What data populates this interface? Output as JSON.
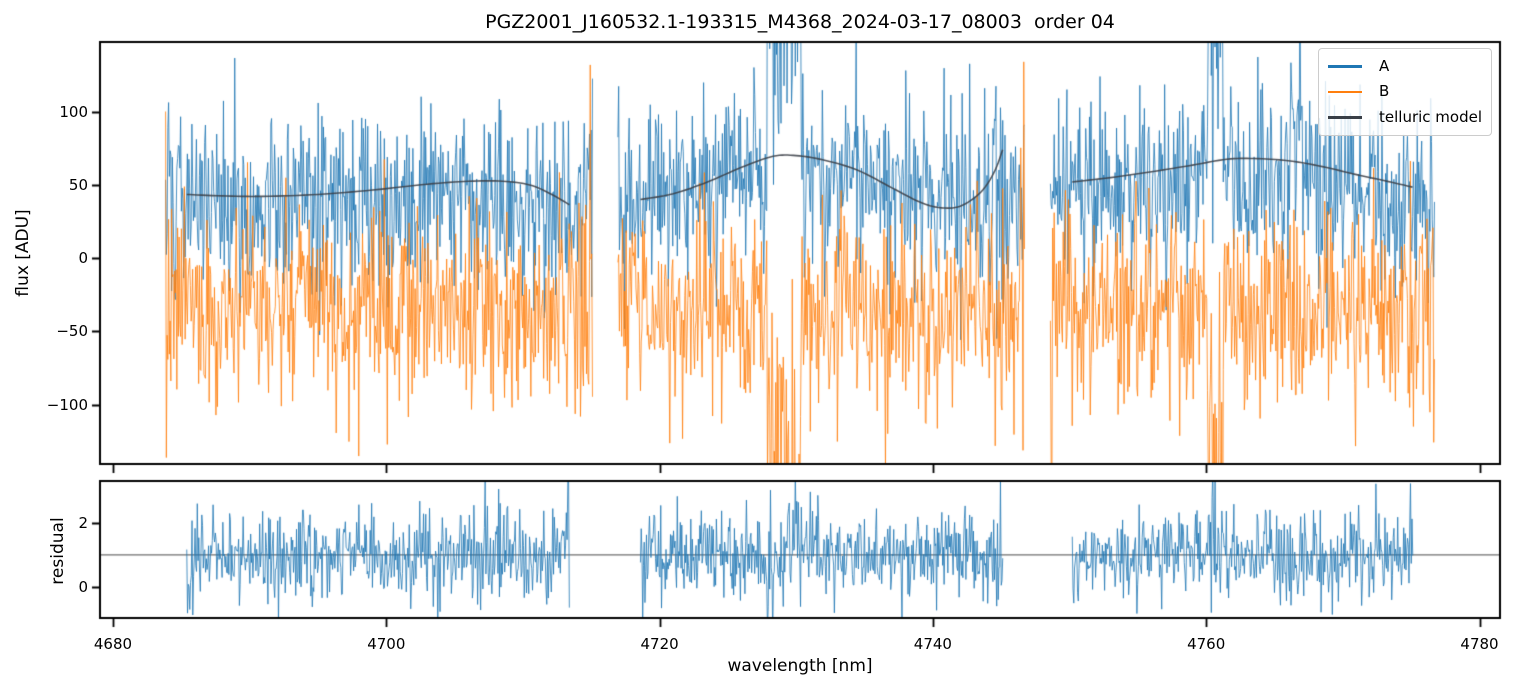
{
  "figure": {
    "background": "#ffffff"
  },
  "chart_data": {
    "type": "line",
    "title": "PGZ2001_J160532.1-193315_M4368_2024-03-17_08003  order 04",
    "xlabel": "wavelength [nm]",
    "xlim": [
      4679.05,
      4781.5
    ],
    "xticks": [
      4680,
      4700,
      4720,
      4740,
      4760,
      4780
    ],
    "grid": false,
    "features": [
      {
        "x0": 4727.85,
        "x1": 4730.35,
        "a_shift": 112,
        "a_scale": 1.9,
        "b_shift": -95,
        "b_scale": 1.9,
        "r_scale": 1.55
      },
      {
        "x0": 4744.35,
        "x1": 4745.3,
        "a_shift": 25,
        "a_scale": 1.5,
        "b_shift": -20,
        "b_scale": 1.4,
        "r_scale": 1.2
      },
      {
        "x0": 4760.15,
        "x1": 4761.2,
        "a_shift": 92,
        "a_scale": 1.7,
        "b_shift": -92,
        "b_scale": 1.8,
        "r_scale": 1.6
      },
      {
        "x0": 4766.15,
        "x1": 4767.0,
        "a_shift": 55,
        "a_scale": 1.6,
        "b_shift": -30,
        "b_scale": 1.5,
        "r_scale": 1.3
      }
    ],
    "panels": [
      {
        "id": "flux",
        "ylabel": "flux [ADU]",
        "ylim": [
          -140.4,
          147.5
        ],
        "yticks": [
          -100,
          -50,
          0,
          50,
          100
        ],
        "legend": {
          "position": "upper right",
          "entries": [
            {
              "label": "A",
              "color": "#1f77b4"
            },
            {
              "label": "B",
              "color": "#ff7f0e"
            },
            {
              "label": "telluric model",
              "color": "#3a3f47"
            }
          ]
        },
        "series": [
          {
            "name": "A",
            "kind": "noisy",
            "prefix": "a",
            "color": "#1f77b4",
            "alpha": 0.8,
            "sigma": 31,
            "seed": 101,
            "segments": [
              {
                "x0": 4683.85,
                "x1": 4715.1,
                "mean_points": [
                  [
                    4683.85,
                    42
                  ],
                  [
                    4688,
                    36
                  ],
                  [
                    4695,
                    38
                  ],
                  [
                    4702,
                    44
                  ],
                  [
                    4707,
                    46
                  ],
                  [
                    4711,
                    42
                  ],
                  [
                    4715.1,
                    40
                  ]
                ]
              },
              {
                "x0": 4716.95,
                "x1": 4746.7,
                "mean_points": [
                  [
                    4716.95,
                    40
                  ],
                  [
                    4721,
                    42
                  ],
                  [
                    4725,
                    52
                  ],
                  [
                    4728,
                    62
                  ],
                  [
                    4731,
                    62
                  ],
                  [
                    4734,
                    55
                  ],
                  [
                    4738,
                    42
                  ],
                  [
                    4741,
                    36
                  ],
                  [
                    4744,
                    42
                  ],
                  [
                    4746.7,
                    46
                  ]
                ]
              },
              {
                "x0": 4748.6,
                "x1": 4776.7,
                "mean_points": [
                  [
                    4748.6,
                    42
                  ],
                  [
                    4752,
                    44
                  ],
                  [
                    4757,
                    48
                  ],
                  [
                    4761,
                    52
                  ],
                  [
                    4764,
                    52
                  ],
                  [
                    4768,
                    48
                  ],
                  [
                    4772,
                    44
                  ],
                  [
                    4776.7,
                    42
                  ]
                ]
              }
            ]
          },
          {
            "name": "B",
            "kind": "noisy",
            "prefix": "b",
            "color": "#ff7f0e",
            "alpha": 0.8,
            "sigma": 33,
            "seed": 202,
            "segments": [
              {
                "x0": 4683.85,
                "x1": 4715.1,
                "mean_points": [
                  [
                    4683.85,
                    -30
                  ],
                  [
                    4690,
                    -34
                  ],
                  [
                    4698,
                    -35
                  ],
                  [
                    4706,
                    -33
                  ],
                  [
                    4715.1,
                    -34
                  ]
                ]
              },
              {
                "x0": 4716.95,
                "x1": 4746.7,
                "mean_points": [
                  [
                    4716.95,
                    -30
                  ],
                  [
                    4722,
                    -34
                  ],
                  [
                    4727,
                    -38
                  ],
                  [
                    4731,
                    -40
                  ],
                  [
                    4736,
                    -38
                  ],
                  [
                    4741,
                    -34
                  ],
                  [
                    4746.7,
                    -32
                  ]
                ]
              },
              {
                "x0": 4748.6,
                "x1": 4776.7,
                "mean_points": [
                  [
                    4748.6,
                    -30
                  ],
                  [
                    4754,
                    -34
                  ],
                  [
                    4760,
                    -35
                  ],
                  [
                    4766,
                    -36
                  ],
                  [
                    4771,
                    -35
                  ],
                  [
                    4776.7,
                    -32
                  ]
                ]
              }
            ]
          },
          {
            "name": "telluric model",
            "kind": "smooth",
            "color": "#3a3f47",
            "alpha": 0.88,
            "linewidth": 1.6,
            "segments": [
              {
                "points": [
                  [
                    4685.4,
                    43.5
                  ],
                  [
                    4688,
                    42.5
                  ],
                  [
                    4691,
                    42.2
                  ],
                  [
                    4695,
                    43.5
                  ],
                  [
                    4699,
                    46.5
                  ],
                  [
                    4703,
                    50.5
                  ],
                  [
                    4706,
                    52.5
                  ],
                  [
                    4708.5,
                    52.5
                  ],
                  [
                    4710.5,
                    50
                  ],
                  [
                    4712,
                    44
                  ],
                  [
                    4713.4,
                    36.5
                  ]
                ]
              },
              {
                "points": [
                  [
                    4718.6,
                    40
                  ],
                  [
                    4721,
                    44
                  ],
                  [
                    4723.5,
                    52
                  ],
                  [
                    4726,
                    62
                  ],
                  [
                    4728.3,
                    69.5
                  ],
                  [
                    4730,
                    70
                  ],
                  [
                    4732,
                    67
                  ],
                  [
                    4734.5,
                    60
                  ],
                  [
                    4737,
                    48
                  ],
                  [
                    4739,
                    38.5
                  ],
                  [
                    4740.5,
                    34.5
                  ],
                  [
                    4742,
                    35.5
                  ],
                  [
                    4743.5,
                    45
                  ],
                  [
                    4744.5,
                    59
                  ],
                  [
                    4745.1,
                    74
                  ]
                ]
              },
              {
                "points": [
                  [
                    4750.2,
                    52
                  ],
                  [
                    4753,
                    55
                  ],
                  [
                    4756,
                    59
                  ],
                  [
                    4759,
                    63.5
                  ],
                  [
                    4761.5,
                    67.5
                  ],
                  [
                    4763.5,
                    68
                  ],
                  [
                    4766,
                    66.5
                  ],
                  [
                    4768.5,
                    62.5
                  ],
                  [
                    4771,
                    57
                  ],
                  [
                    4773,
                    53
                  ],
                  [
                    4775.1,
                    48.5
                  ]
                ]
              }
            ]
          }
        ]
      },
      {
        "id": "residual",
        "ylabel": "residual",
        "ylim": [
          -0.97,
          3.31
        ],
        "yticks": [
          0,
          2
        ],
        "hline": {
          "y": 1.0,
          "color": "#6e6e6e"
        },
        "series": [
          {
            "name": "residual",
            "kind": "noisy",
            "prefix": "r",
            "color": "#1f77b4",
            "alpha": 0.8,
            "sigma": 0.68,
            "seed": 303,
            "segments": [
              {
                "x0": 4685.4,
                "x1": 4713.4,
                "mean_points": [
                  [
                    4685.4,
                    1
                  ],
                  [
                    4713.4,
                    1
                  ]
                ]
              },
              {
                "x0": 4718.6,
                "x1": 4745.1,
                "mean_points": [
                  [
                    4718.6,
                    1
                  ],
                  [
                    4726.5,
                    0.95
                  ],
                  [
                    4728.6,
                    0.45
                  ],
                  [
                    4730.3,
                    1.7
                  ],
                  [
                    4732,
                    1.05
                  ],
                  [
                    4745.1,
                    1
                  ]
                ]
              },
              {
                "x0": 4750.2,
                "x1": 4775.1,
                "mean_points": [
                  [
                    4750.2,
                    1
                  ],
                  [
                    4759.9,
                    1.05
                  ],
                  [
                    4760.4,
                    1.8
                  ],
                  [
                    4761.1,
                    1.05
                  ],
                  [
                    4763,
                    0.95
                  ],
                  [
                    4775.1,
                    1
                  ]
                ]
              }
            ]
          }
        ]
      }
    ]
  }
}
